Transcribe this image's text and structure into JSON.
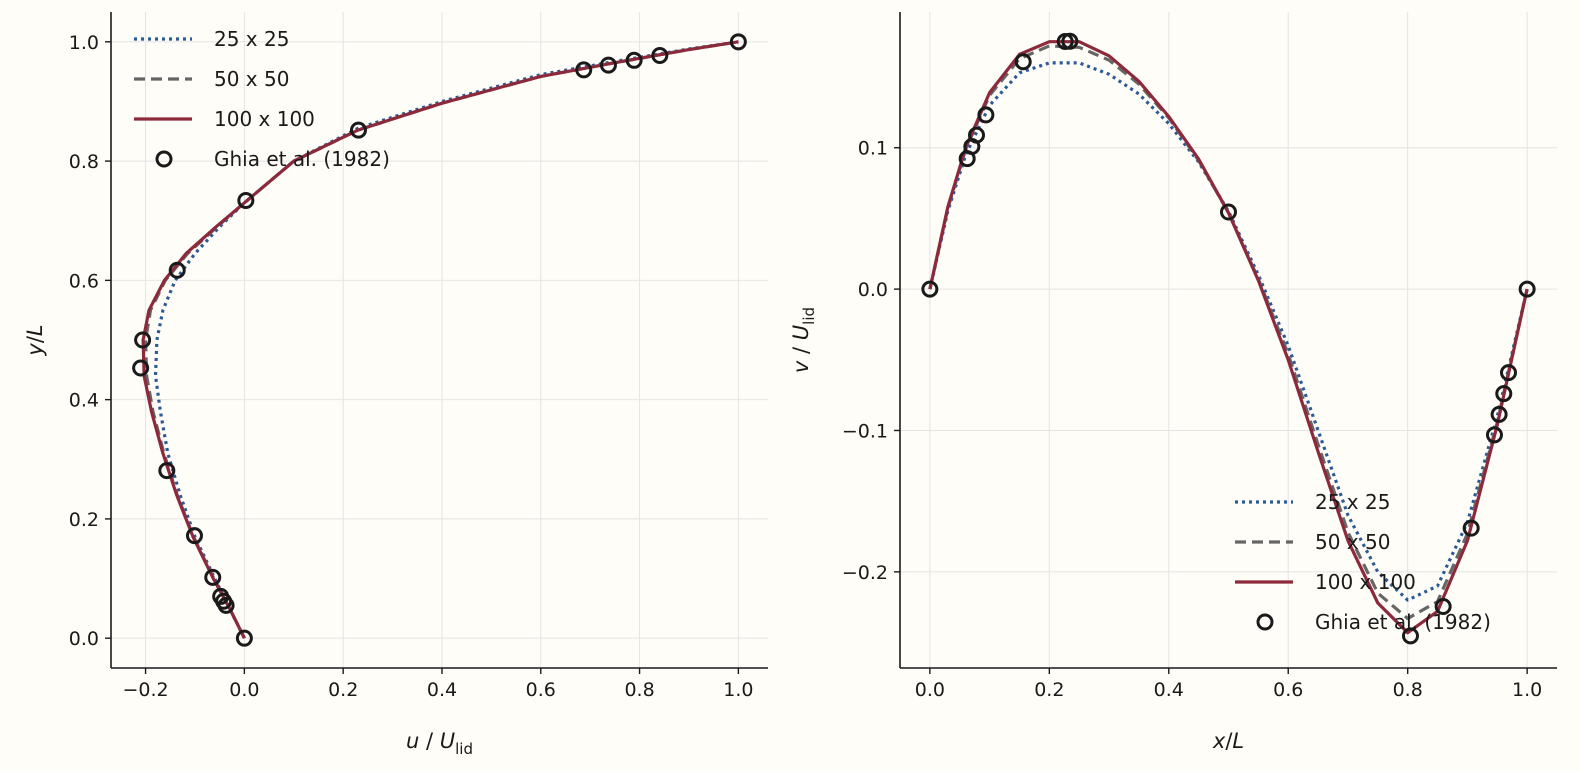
{
  "colors": {
    "coarse": "#2c5a96",
    "medium": "#666666",
    "fine": "#8c2a3c",
    "marker": "#1a1a1a",
    "grid": "#e4e4e4",
    "background": "#fffdf8"
  },
  "chart_data": [
    {
      "type": "line",
      "xlabel": {
        "var": "u",
        "sep": " / ",
        "unit": "U",
        "sub": "lid"
      },
      "ylabel": {
        "var": "y",
        "sep": "/",
        "unit": "L"
      },
      "xlim": [
        -0.27,
        1.06
      ],
      "ylim": [
        -0.05,
        1.05
      ],
      "xticks": [
        -0.2,
        0.0,
        0.2,
        0.4,
        0.6,
        0.8,
        1.0
      ],
      "xtick_labels": [
        "−0.2",
        "0.0",
        "0.2",
        "0.4",
        "0.6",
        "0.8",
        "1.0"
      ],
      "yticks": [
        0.0,
        0.2,
        0.4,
        0.6,
        0.8,
        1.0
      ],
      "ytick_labels": [
        "0.0",
        "0.2",
        "0.4",
        "0.6",
        "0.8",
        "1.0"
      ],
      "grid": true,
      "legend_position": "top-left",
      "series": [
        {
          "name": "25 x 25",
          "style": "dotted",
          "color_key": "coarse",
          "points": [
            [
              0.0,
              0.0
            ],
            [
              -0.03,
              0.05
            ],
            [
              -0.06,
              0.1
            ],
            [
              -0.1,
              0.17
            ],
            [
              -0.13,
              0.24
            ],
            [
              -0.155,
              0.31
            ],
            [
              -0.17,
              0.38
            ],
            [
              -0.18,
              0.44
            ],
            [
              -0.177,
              0.5
            ],
            [
              -0.165,
              0.55
            ],
            [
              -0.14,
              0.6
            ],
            [
              -0.1,
              0.645
            ],
            [
              -0.05,
              0.69
            ],
            [
              0.0,
              0.73
            ],
            [
              0.1,
              0.8
            ],
            [
              0.23,
              0.855
            ],
            [
              0.4,
              0.9
            ],
            [
              0.6,
              0.945
            ],
            [
              0.75,
              0.967
            ],
            [
              0.9,
              0.988
            ],
            [
              1.0,
              1.0
            ]
          ]
        },
        {
          "name": "50 x 50",
          "style": "dashed",
          "color_key": "medium",
          "points": [
            [
              0.0,
              0.0
            ],
            [
              -0.03,
              0.05
            ],
            [
              -0.062,
              0.1
            ],
            [
              -0.103,
              0.17
            ],
            [
              -0.136,
              0.24
            ],
            [
              -0.163,
              0.31
            ],
            [
              -0.185,
              0.38
            ],
            [
              -0.198,
              0.44
            ],
            [
              -0.2,
              0.5
            ],
            [
              -0.19,
              0.55
            ],
            [
              -0.16,
              0.6
            ],
            [
              -0.115,
              0.645
            ],
            [
              -0.055,
              0.69
            ],
            [
              0.0,
              0.73
            ],
            [
              0.1,
              0.8
            ],
            [
              0.23,
              0.852
            ],
            [
              0.4,
              0.897
            ],
            [
              0.6,
              0.942
            ],
            [
              0.75,
              0.965
            ],
            [
              0.9,
              0.987
            ],
            [
              1.0,
              1.0
            ]
          ]
        },
        {
          "name": "100 x 100",
          "style": "solid",
          "color_key": "fine",
          "points": [
            [
              0.0,
              0.0
            ],
            [
              -0.03,
              0.05
            ],
            [
              -0.063,
              0.1
            ],
            [
              -0.104,
              0.17
            ],
            [
              -0.137,
              0.24
            ],
            [
              -0.165,
              0.31
            ],
            [
              -0.188,
              0.38
            ],
            [
              -0.203,
              0.44
            ],
            [
              -0.205,
              0.5
            ],
            [
              -0.193,
              0.55
            ],
            [
              -0.162,
              0.6
            ],
            [
              -0.118,
              0.645
            ],
            [
              -0.057,
              0.69
            ],
            [
              0.0,
              0.73
            ],
            [
              0.1,
              0.8
            ],
            [
              0.23,
              0.852
            ],
            [
              0.4,
              0.897
            ],
            [
              0.6,
              0.942
            ],
            [
              0.75,
              0.965
            ],
            [
              0.9,
              0.987
            ],
            [
              1.0,
              1.0
            ]
          ]
        },
        {
          "name": "Ghia et al. (1982)",
          "style": "markers",
          "color_key": "marker",
          "points": [
            [
              0.0,
              0.0
            ],
            [
              -0.037,
              0.055
            ],
            [
              -0.042,
              0.062
            ],
            [
              -0.048,
              0.07
            ],
            [
              -0.064,
              0.102
            ],
            [
              -0.101,
              0.172
            ],
            [
              -0.157,
              0.281
            ],
            [
              -0.21,
              0.453
            ],
            [
              -0.206,
              0.5
            ],
            [
              -0.136,
              0.617
            ],
            [
              0.003,
              0.734
            ],
            [
              0.231,
              0.852
            ],
            [
              0.687,
              0.953
            ],
            [
              0.737,
              0.961
            ],
            [
              0.789,
              0.969
            ],
            [
              0.841,
              0.977
            ],
            [
              1.0,
              1.0
            ]
          ]
        }
      ]
    },
    {
      "type": "line",
      "xlabel": {
        "var": "x",
        "sep": "/",
        "unit": "L"
      },
      "ylabel": {
        "var": "v",
        "sep": " / ",
        "unit": "U",
        "sub": "lid"
      },
      "xlim": [
        -0.05,
        1.05
      ],
      "ylim": [
        -0.268,
        0.196
      ],
      "xticks": [
        0.0,
        0.2,
        0.4,
        0.6,
        0.8,
        1.0
      ],
      "xtick_labels": [
        "0.0",
        "0.2",
        "0.4",
        "0.6",
        "0.8",
        "1.0"
      ],
      "yticks": [
        -0.2,
        -0.1,
        0.0,
        0.1
      ],
      "ytick_labels": [
        "−0.2",
        "−0.1",
        "0.0",
        "0.1"
      ],
      "grid": true,
      "legend_position": "bottom-right",
      "series": [
        {
          "name": "25 x 25",
          "style": "dotted",
          "color_key": "coarse",
          "points": [
            [
              0.0,
              0.0
            ],
            [
              0.03,
              0.055
            ],
            [
              0.06,
              0.095
            ],
            [
              0.1,
              0.13
            ],
            [
              0.15,
              0.153
            ],
            [
              0.2,
              0.16
            ],
            [
              0.25,
              0.16
            ],
            [
              0.3,
              0.152
            ],
            [
              0.35,
              0.138
            ],
            [
              0.4,
              0.117
            ],
            [
              0.45,
              0.09
            ],
            [
              0.5,
              0.055
            ],
            [
              0.55,
              0.01
            ],
            [
              0.6,
              -0.04
            ],
            [
              0.65,
              -0.1
            ],
            [
              0.7,
              -0.16
            ],
            [
              0.75,
              -0.2
            ],
            [
              0.8,
              -0.22
            ],
            [
              0.85,
              -0.21
            ],
            [
              0.9,
              -0.165
            ],
            [
              0.95,
              -0.09
            ],
            [
              1.0,
              0.0
            ]
          ]
        },
        {
          "name": "50 x 50",
          "style": "dashed",
          "color_key": "medium",
          "points": [
            [
              0.0,
              0.0
            ],
            [
              0.03,
              0.057
            ],
            [
              0.06,
              0.099
            ],
            [
              0.1,
              0.137
            ],
            [
              0.15,
              0.163
            ],
            [
              0.2,
              0.172
            ],
            [
              0.25,
              0.171
            ],
            [
              0.3,
              0.162
            ],
            [
              0.35,
              0.145
            ],
            [
              0.4,
              0.121
            ],
            [
              0.45,
              0.091
            ],
            [
              0.5,
              0.054
            ],
            [
              0.55,
              0.007
            ],
            [
              0.6,
              -0.046
            ],
            [
              0.65,
              -0.11
            ],
            [
              0.7,
              -0.172
            ],
            [
              0.75,
              -0.215
            ],
            [
              0.8,
              -0.233
            ],
            [
              0.85,
              -0.221
            ],
            [
              0.9,
              -0.173
            ],
            [
              0.95,
              -0.094
            ],
            [
              1.0,
              0.0
            ]
          ]
        },
        {
          "name": "100 x 100",
          "style": "solid",
          "color_key": "fine",
          "points": [
            [
              0.0,
              0.0
            ],
            [
              0.03,
              0.058
            ],
            [
              0.06,
              0.1
            ],
            [
              0.1,
              0.139
            ],
            [
              0.15,
              0.166
            ],
            [
              0.2,
              0.175
            ],
            [
              0.25,
              0.175
            ],
            [
              0.3,
              0.165
            ],
            [
              0.35,
              0.147
            ],
            [
              0.4,
              0.122
            ],
            [
              0.45,
              0.092
            ],
            [
              0.5,
              0.054
            ],
            [
              0.55,
              0.006
            ],
            [
              0.6,
              -0.05
            ],
            [
              0.65,
              -0.115
            ],
            [
              0.7,
              -0.178
            ],
            [
              0.75,
              -0.222
            ],
            [
              0.8,
              -0.243
            ],
            [
              0.85,
              -0.228
            ],
            [
              0.9,
              -0.178
            ],
            [
              0.95,
              -0.096
            ],
            [
              1.0,
              0.0
            ]
          ]
        },
        {
          "name": "Ghia et al. (1982)",
          "style": "markers",
          "color_key": "marker",
          "points": [
            [
              0.0,
              0.0
            ],
            [
              0.0625,
              0.0923
            ],
            [
              0.0703,
              0.1009
            ],
            [
              0.0781,
              0.1089
            ],
            [
              0.0938,
              0.1232
            ],
            [
              0.1563,
              0.1608
            ],
            [
              0.2266,
              0.1751
            ],
            [
              0.2344,
              0.1753
            ],
            [
              0.5,
              0.0545
            ],
            [
              0.8047,
              -0.2453
            ],
            [
              0.8594,
              -0.2245
            ],
            [
              0.9063,
              -0.1691
            ],
            [
              0.9453,
              -0.1031
            ],
            [
              0.9531,
              -0.0886
            ],
            [
              0.9609,
              -0.0739
            ],
            [
              0.9688,
              -0.0591
            ],
            [
              1.0,
              0.0
            ]
          ]
        }
      ]
    }
  ]
}
